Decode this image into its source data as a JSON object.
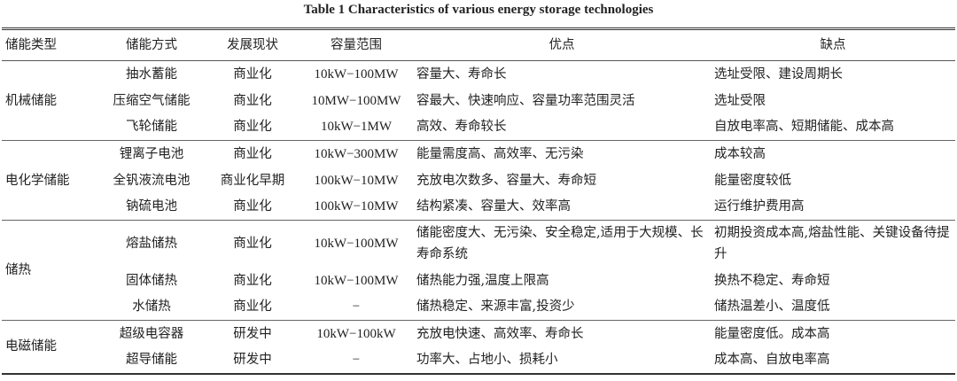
{
  "title": "Table 1    Characteristics of various energy storage technologies",
  "headers": [
    "储能类型",
    "储能方式",
    "发展现状",
    "容量范围",
    "优点",
    "缺点"
  ],
  "groups": [
    {
      "type": "机械储能",
      "rows": [
        [
          "抽水蓄能",
          "商业化",
          "10kW−100MW",
          "容量大、寿命长",
          "选址受限、建设周期长"
        ],
        [
          "压缩空气储能",
          "商业化",
          "10MW−100MW",
          "容最大、快速响应、容量功率范围灵活",
          "选址受限"
        ],
        [
          "飞轮储能",
          "商业化",
          "10kW−1MW",
          "高效、寿命较长",
          "自放电率高、短期储能、成本高"
        ]
      ]
    },
    {
      "type": "电化学储能",
      "rows": [
        [
          "锂离子电池",
          "商业化",
          "10kW−300MW",
          "能量需度高、高效率、无污染",
          "成本较高"
        ],
        [
          "全钒液流电池",
          "商业化早期",
          "100kW−10MW",
          "充放电次数多、容量大、寿命短",
          "能量密度较低"
        ],
        [
          "钠硫电池",
          "商业化",
          "100kW−10MW",
          "结构紧凑、容量大、效率高",
          "运行维护费用高"
        ]
      ]
    },
    {
      "type": "储热",
      "rows": [
        [
          "熔盐储热",
          "商业化",
          "10kW−100MW",
          "储能密度大、无污染、安全稳定,适用于大规模、长寿命系统",
          "初期投资成本高,熔盐性能、关键设备待提升"
        ],
        [
          "固体储热",
          "商业化",
          "10kW−100MW",
          "储热能力强,温度上限高",
          "换热不稳定、寿命短"
        ],
        [
          "水储热",
          "商业化",
          "−",
          "储热稳定、来源丰富,投资少",
          "储热温差小、温度低"
        ]
      ]
    },
    {
      "type": "电磁储能",
      "rows": [
        [
          "超级电容器",
          "研发中",
          "10kW−100kW",
          "充放电快速、高效率、寿命长",
          "能量密度低。成本高"
        ],
        [
          "超导储能",
          "研发中",
          "−",
          "功率大、占地小、损耗小",
          "成本高、自放电率高"
        ]
      ]
    }
  ]
}
